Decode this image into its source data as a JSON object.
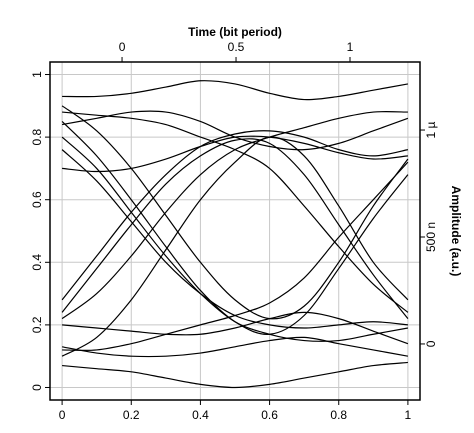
{
  "chart_data": {
    "type": "line",
    "x2label": "Time (bit period)",
    "y2label": "Amplitude (a.u.)",
    "xlim": [
      -0.035,
      1.035
    ],
    "xticks": [
      0,
      0.2,
      0.4,
      0.6,
      0.8,
      1
    ],
    "ylim": [
      -0.04,
      1.04
    ],
    "yticks": [
      0,
      0.2,
      0.4,
      0.6,
      0.8,
      1
    ],
    "x2lim": [
      -0.316,
      1.307
    ],
    "x2ticks": [
      0,
      0.5,
      1
    ],
    "y2lim": [
      -2.62e-07,
      1.318e-06
    ],
    "y2ticks": [
      0,
      {
        "value": 5e-07,
        "label": "500 n"
      },
      {
        "value": 1e-06,
        "label": "1 µ"
      }
    ],
    "grid": true,
    "x": [
      0,
      0.1,
      0.2,
      0.3,
      0.4,
      0.5,
      0.6,
      0.7,
      0.8,
      0.9,
      1
    ],
    "series": [
      {
        "color": "#000000",
        "values": [
          0.93,
          0.93,
          0.94,
          0.96,
          0.98,
          0.97,
          0.94,
          0.92,
          0.93,
          0.95,
          0.97
        ]
      },
      {
        "color": "#000000",
        "values": [
          0.07,
          0.06,
          0.05,
          0.03,
          0.01,
          0.0,
          0.01,
          0.03,
          0.05,
          0.07,
          0.08
        ]
      },
      {
        "color": "#000000",
        "values": [
          0.28,
          0.42,
          0.56,
          0.68,
          0.77,
          0.81,
          0.82,
          0.8,
          0.76,
          0.74,
          0.76
        ]
      },
      {
        "color": "#000000",
        "values": [
          0.24,
          0.38,
          0.52,
          0.65,
          0.74,
          0.79,
          0.78,
          0.68,
          0.52,
          0.36,
          0.22
        ]
      },
      {
        "color": "#000000",
        "values": [
          0.85,
          0.74,
          0.6,
          0.45,
          0.31,
          0.21,
          0.17,
          0.23,
          0.38,
          0.54,
          0.68
        ]
      },
      {
        "color": "#000000",
        "values": [
          0.8,
          0.7,
          0.56,
          0.42,
          0.3,
          0.21,
          0.17,
          0.15,
          0.15,
          0.17,
          0.19
        ]
      },
      {
        "color": "#000000",
        "values": [
          0.12,
          0.12,
          0.14,
          0.17,
          0.2,
          0.23,
          0.27,
          0.35,
          0.48,
          0.6,
          0.72
        ]
      },
      {
        "color": "#000000",
        "values": [
          0.88,
          0.87,
          0.86,
          0.84,
          0.8,
          0.76,
          0.7,
          0.58,
          0.45,
          0.33,
          0.24
        ]
      },
      {
        "color": "#000000",
        "values": [
          0.22,
          0.3,
          0.42,
          0.56,
          0.68,
          0.76,
          0.8,
          0.83,
          0.86,
          0.88,
          0.88
        ]
      },
      {
        "color": "#000000",
        "values": [
          0.76,
          0.66,
          0.53,
          0.4,
          0.3,
          0.23,
          0.2,
          0.19,
          0.2,
          0.21,
          0.2
        ]
      },
      {
        "color": "#000000",
        "values": [
          0.7,
          0.69,
          0.7,
          0.73,
          0.77,
          0.8,
          0.8,
          0.78,
          0.75,
          0.73,
          0.74
        ]
      },
      {
        "color": "#000000",
        "values": [
          0.2,
          0.19,
          0.18,
          0.17,
          0.17,
          0.19,
          0.22,
          0.24,
          0.22,
          0.18,
          0.14
        ]
      },
      {
        "color": "#000000",
        "values": [
          0.84,
          0.86,
          0.88,
          0.88,
          0.85,
          0.8,
          0.77,
          0.76,
          0.78,
          0.82,
          0.86
        ]
      },
      {
        "color": "#000000",
        "values": [
          0.13,
          0.11,
          0.1,
          0.1,
          0.11,
          0.13,
          0.15,
          0.16,
          0.14,
          0.12,
          0.1
        ]
      },
      {
        "color": "#000000",
        "values": [
          0.9,
          0.82,
          0.7,
          0.55,
          0.4,
          0.28,
          0.22,
          0.26,
          0.4,
          0.58,
          0.73
        ]
      },
      {
        "color": "#000000",
        "values": [
          0.1,
          0.16,
          0.28,
          0.44,
          0.6,
          0.72,
          0.8,
          0.74,
          0.58,
          0.4,
          0.28
        ]
      }
    ]
  }
}
